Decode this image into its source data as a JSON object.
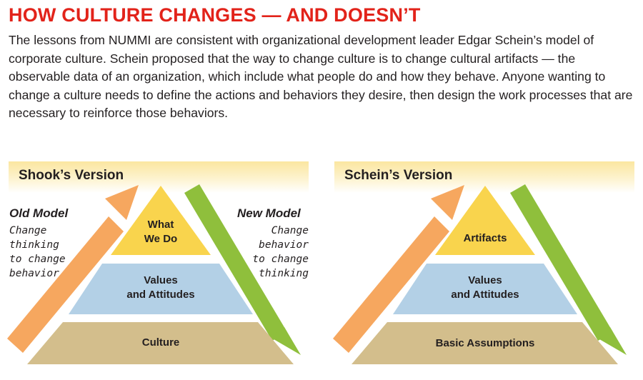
{
  "header": {
    "title": "HOW CULTURE CHANGES — AND DOESN’T",
    "body": "The lessons from NUMMI are consistent with organizational development leader Edgar Schein’s model of corporate culture. Schein proposed that the way to change culture is to change cultural artifacts — the observable data of an organization, which include what people do and how they behave. Anyone wanting to change a culture needs to define the actions and behaviors they desire, then design the work processes that are necessary to reinforce those behaviors."
  },
  "colors": {
    "title_red": "#e2231a",
    "band_yellow": "#fbe6a0",
    "top_tier": "#f9d44d",
    "middle_tier": "#b3d0e6",
    "bottom_tier": "#d3be8c",
    "orange_arrow": "#f6a75f",
    "green_arrow": "#8fbf3c"
  },
  "shook": {
    "title": "Shook’s Version",
    "old_model": {
      "heading": "Old Model",
      "lines": [
        "Change",
        "thinking",
        "to change",
        "behavior"
      ]
    },
    "new_model": {
      "heading": "New Model",
      "lines": [
        "Change",
        "behavior",
        "to change",
        "thinking"
      ]
    },
    "levels": {
      "top": [
        "What",
        "We Do"
      ],
      "middle": [
        "Values",
        "and Attitudes"
      ],
      "bottom": [
        "Culture"
      ]
    },
    "icons": [
      "up-arrow-icon",
      "down-arrow-icon"
    ]
  },
  "schein": {
    "title": "Schein’s Version",
    "levels": {
      "top": [
        "Artifacts"
      ],
      "middle": [
        "Values",
        "and Attitudes"
      ],
      "bottom": [
        "Basic Assumptions"
      ]
    },
    "icons": [
      "up-arrow-icon",
      "down-arrow-icon"
    ]
  }
}
